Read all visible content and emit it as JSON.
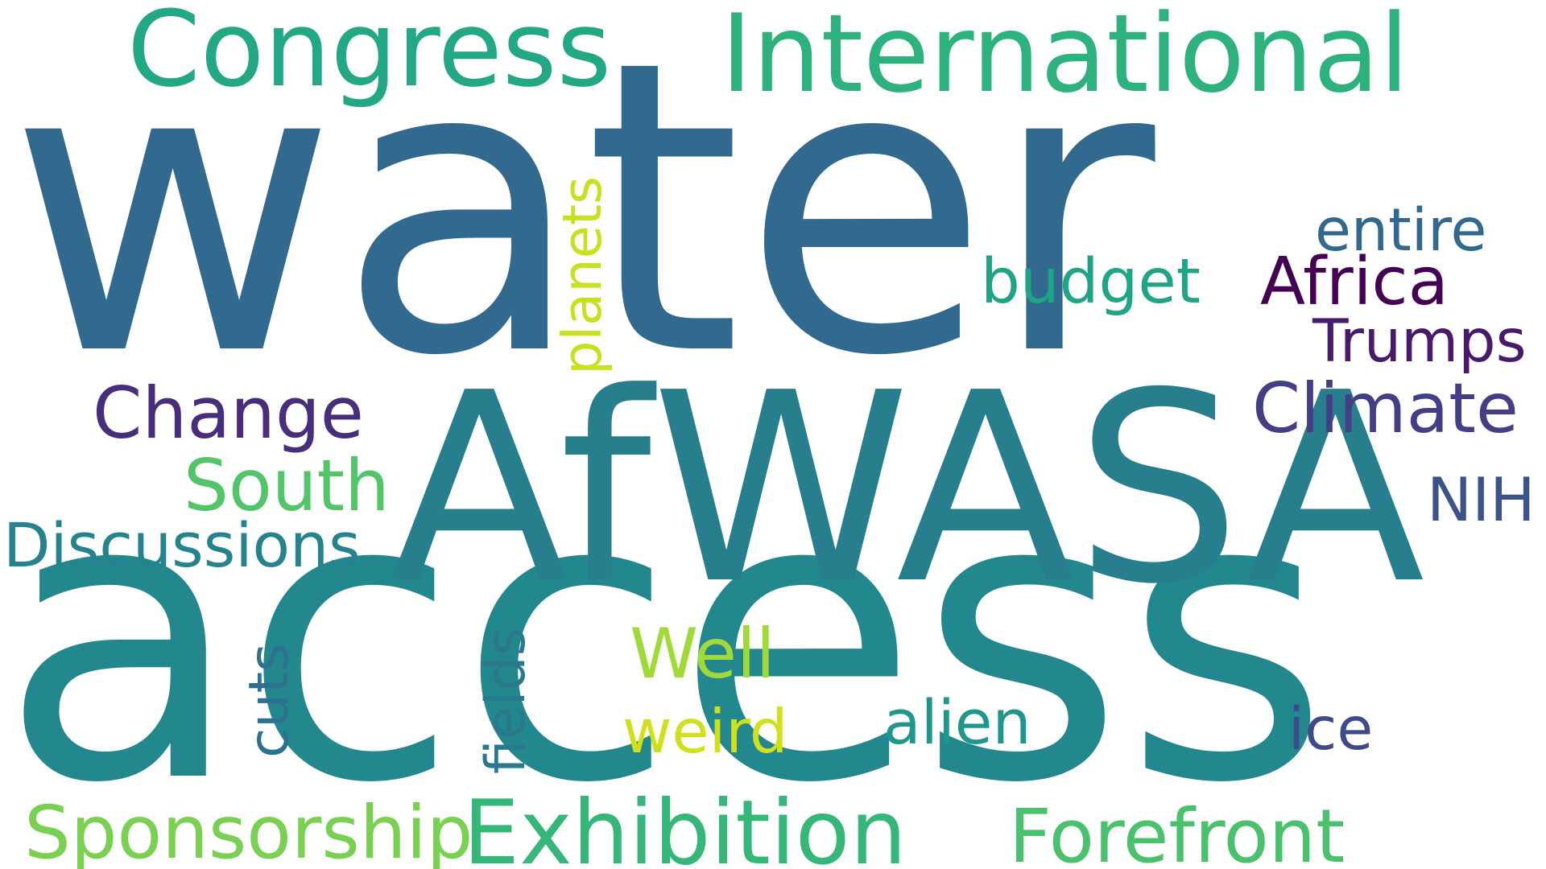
{
  "title": "Word cloud",
  "words": [
    {
      "text": "water",
      "color": "#32698f"
    },
    {
      "text": "access",
      "color": "#23888e"
    },
    {
      "text": "AfWASA",
      "color": "#277f8e"
    },
    {
      "text": "International",
      "color": "#2db27d"
    },
    {
      "text": "Congress",
      "color": "#22a884"
    },
    {
      "text": "Exhibition",
      "color": "#35b779"
    },
    {
      "text": "Sponsorship",
      "color": "#7ad151"
    },
    {
      "text": "Forefront",
      "color": "#4ac16d"
    },
    {
      "text": "Discussions",
      "color": "#25838e"
    },
    {
      "text": "South",
      "color": "#52c569"
    },
    {
      "text": "Change",
      "color": "#472d7b"
    },
    {
      "text": "Climate",
      "color": "#433e85"
    },
    {
      "text": "NIH",
      "color": "#3b528b"
    },
    {
      "text": "Africa",
      "color": "#440154"
    },
    {
      "text": "Trumps",
      "color": "#481a6c"
    },
    {
      "text": "entire",
      "color": "#31688e"
    },
    {
      "text": "budget",
      "color": "#20a486"
    },
    {
      "text": "planets",
      "color": "#c8e020"
    },
    {
      "text": "Well",
      "color": "#a0da39"
    },
    {
      "text": "weird",
      "color": "#d0e11c"
    },
    {
      "text": "alien",
      "color": "#1f988b"
    },
    {
      "text": "ice",
      "color": "#3e4a89"
    },
    {
      "text": "fields",
      "color": "#2a788e"
    },
    {
      "text": "cuts",
      "color": "#2c728e"
    }
  ]
}
